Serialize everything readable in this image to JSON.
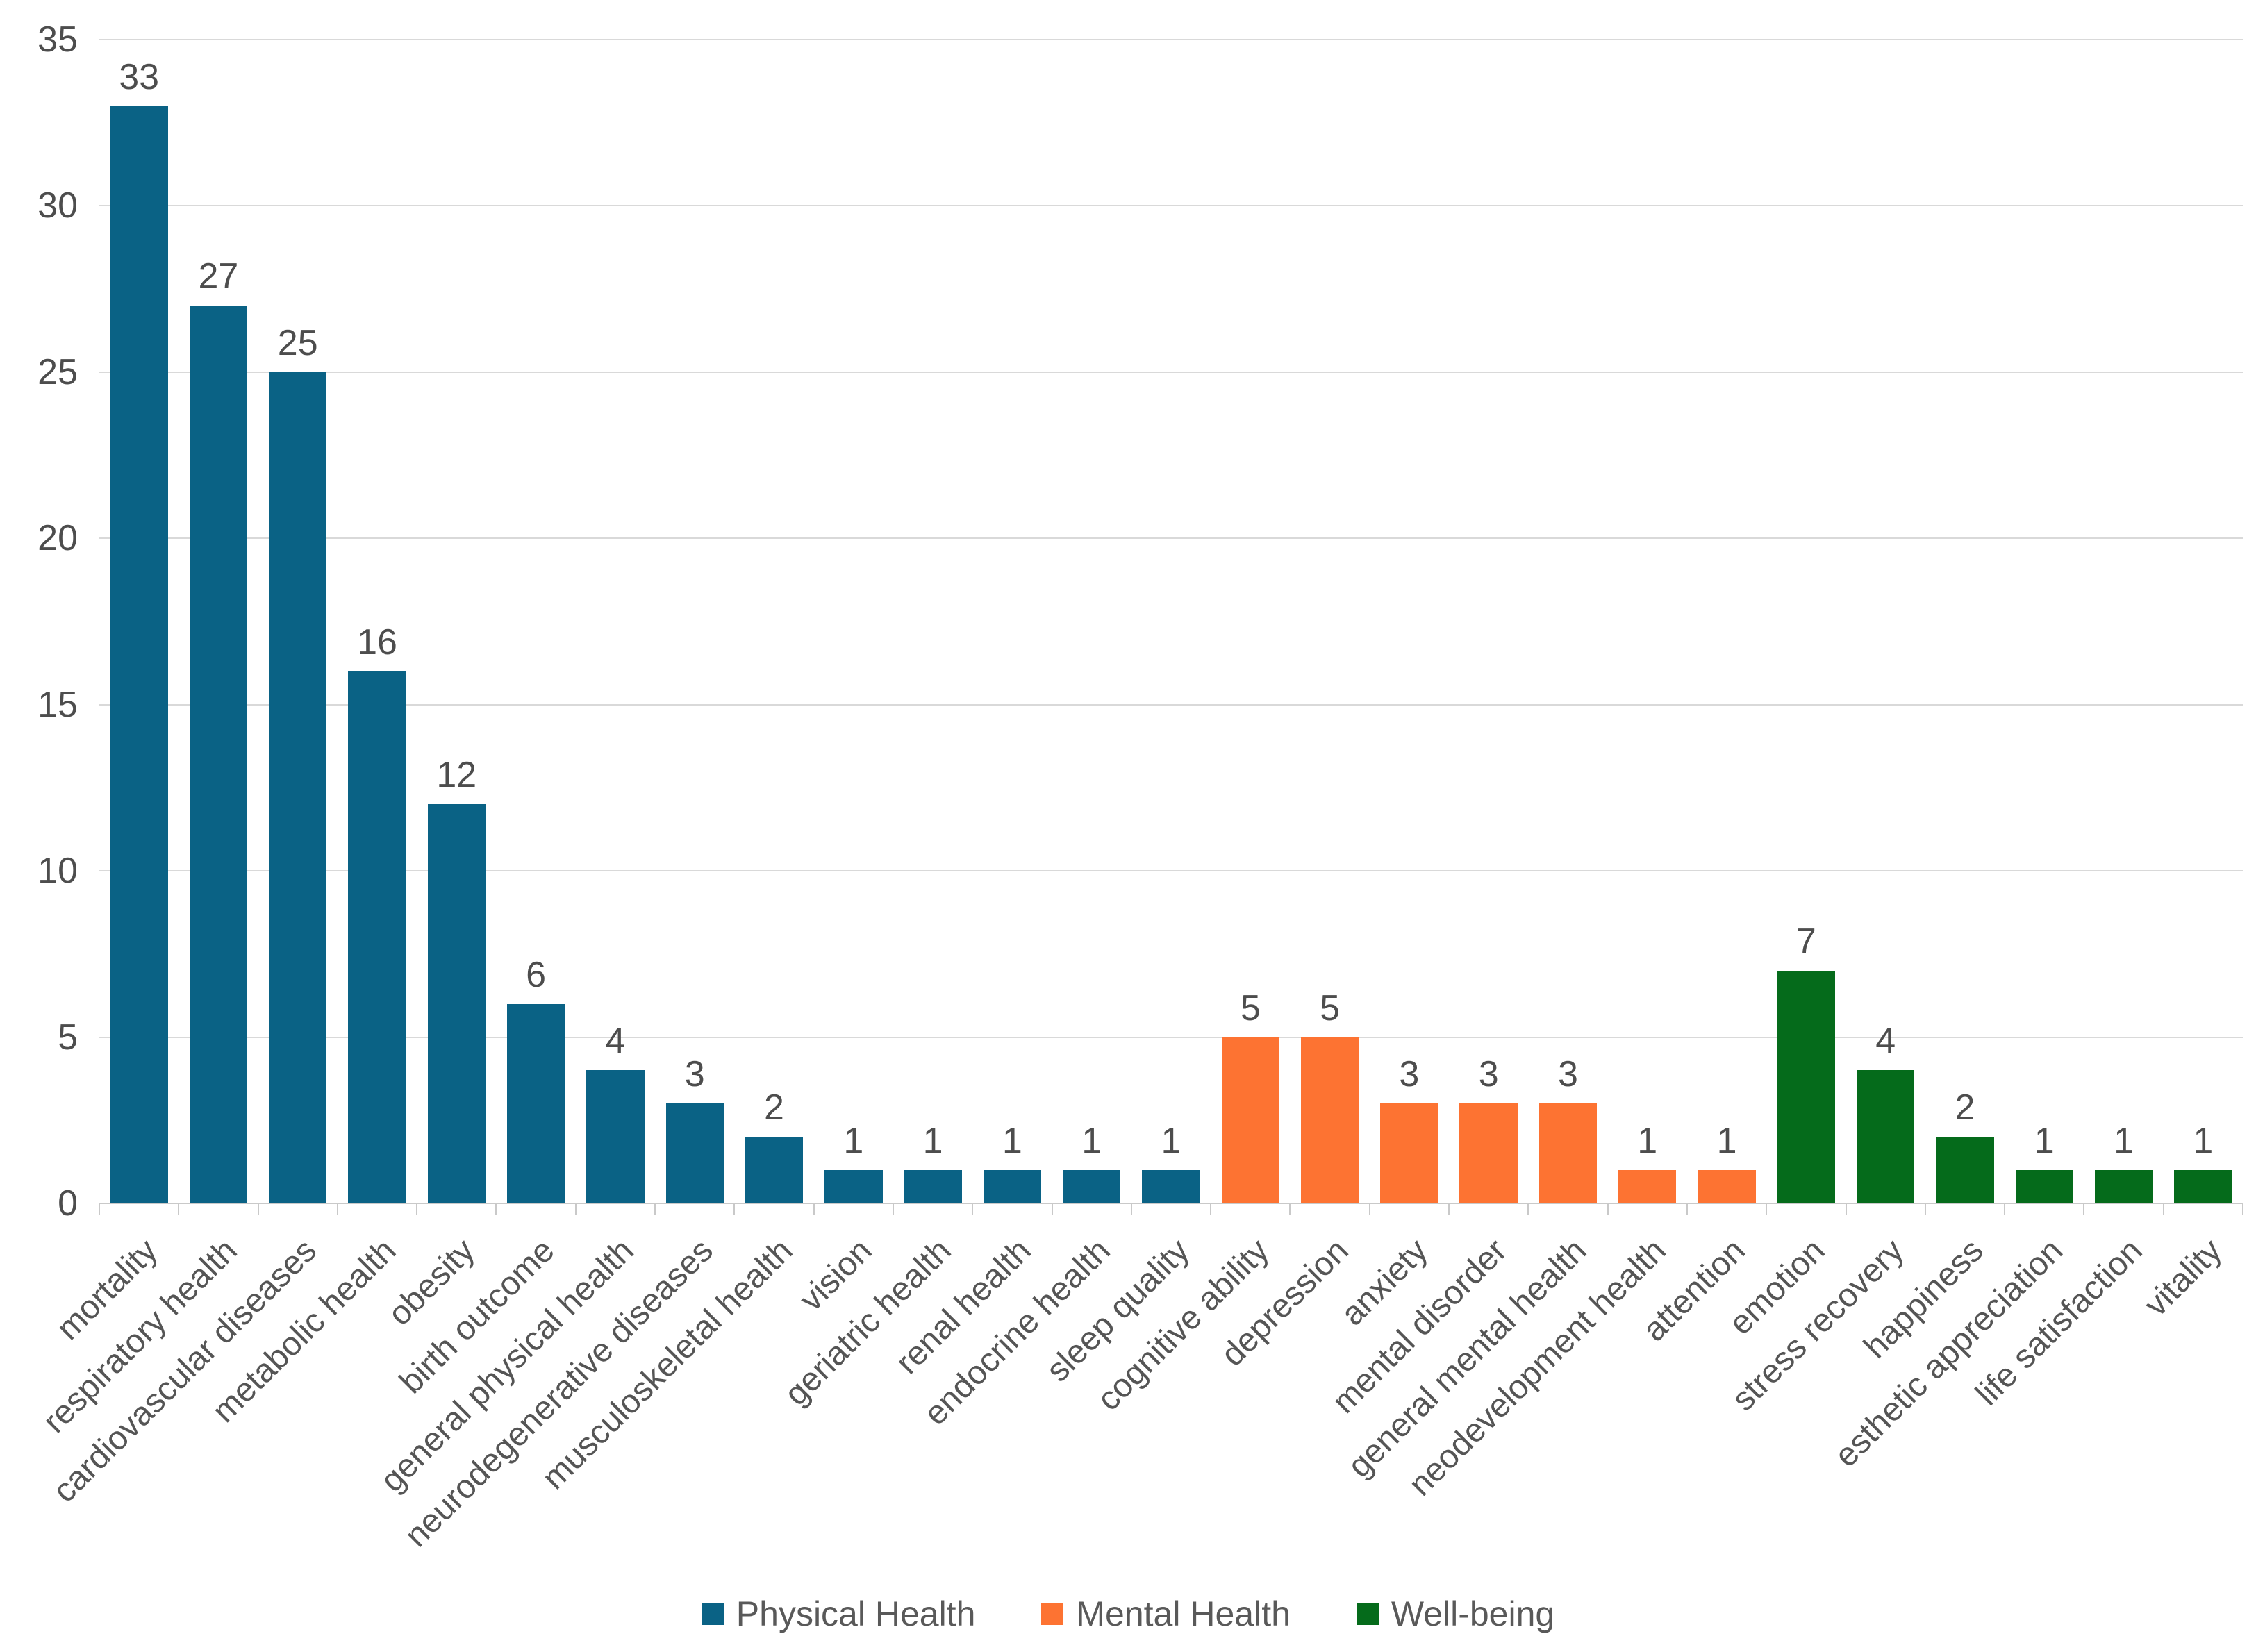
{
  "chart_data": {
    "type": "bar",
    "title": "",
    "xlabel": "",
    "ylabel": "",
    "ylim": [
      0,
      35
    ],
    "yticks": [
      0,
      5,
      10,
      15,
      20,
      25,
      30,
      35
    ],
    "grid": "horizontal",
    "legend_position": "bottom",
    "bar_value_labels": true,
    "series": [
      {
        "name": "Physical Health",
        "color": "#0a6285",
        "data": [
          [
            "mortality",
            33
          ],
          [
            "respiratory health",
            27
          ],
          [
            "cardiovascular diseases",
            25
          ],
          [
            "metabolic health",
            16
          ],
          [
            "obesity",
            12
          ],
          [
            "birth outcome",
            6
          ],
          [
            "general physical health",
            4
          ],
          [
            "neurodegenerative diseases",
            3
          ],
          [
            "musculoskeletal health",
            2
          ],
          [
            "vision",
            1
          ],
          [
            "geriatric health",
            1
          ],
          [
            "renal health",
            1
          ],
          [
            "endocrine health",
            1
          ],
          [
            "sleep quality",
            1
          ]
        ]
      },
      {
        "name": "Mental Health",
        "color": "#fd7332",
        "data": [
          [
            "cognitive ability",
            5
          ],
          [
            "depression",
            5
          ],
          [
            "anxiety",
            3
          ],
          [
            "mental disorder",
            3
          ],
          [
            "general mental health",
            3
          ],
          [
            "neodevelopment health",
            1
          ],
          [
            "attention",
            1
          ]
        ]
      },
      {
        "name": "Well-being",
        "color": "#056b1b",
        "data": [
          [
            "emotion",
            7
          ],
          [
            "stress recovery",
            4
          ],
          [
            "happiness",
            2
          ],
          [
            "esthetic appreciation",
            1
          ],
          [
            "life satisfaction",
            1
          ],
          [
            "vitality",
            1
          ]
        ]
      }
    ]
  }
}
